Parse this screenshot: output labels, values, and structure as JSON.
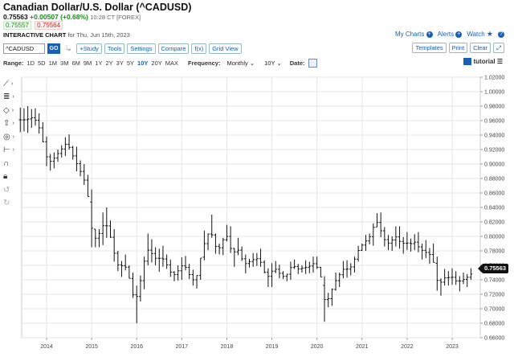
{
  "header": {
    "title": "Canadian Dollar/U.S. Dollar (^CADUSD)",
    "last": "0.75563",
    "change": "+0.00507 (+0.68%)",
    "time": "10:28 CT [FOREX]",
    "bid": "0.75557",
    "ask": "0.75564",
    "chart_label": "INTERACTIVE CHART",
    "chart_date": "for Thu, Jun 15th, 2023"
  },
  "links": {
    "my_charts": "My Charts",
    "alerts": "Alerts",
    "watch": "Watch"
  },
  "toolbar": {
    "symbol_value": "^CADUSD",
    "go": "GO",
    "study": "+Study",
    "tools": "Tools",
    "settings": "Settings",
    "compare": "Compare",
    "fx": "f(x)",
    "grid_view": "Grid View",
    "templates": "Templates",
    "print": "Print",
    "clear": "Clear"
  },
  "rangebar": {
    "range_label": "Range:",
    "ranges": [
      "1D",
      "5D",
      "1M",
      "3M",
      "6M",
      "9M",
      "1Y",
      "2Y",
      "3Y",
      "5Y",
      "10Y",
      "20Y",
      "MAX"
    ],
    "active_range": "10Y",
    "frequency_label": "Frequency:",
    "frequency": "Monthly",
    "period": "10Y",
    "date_label": "Date:",
    "tutorial": "tutorial"
  },
  "side_tools": [
    "line-tool-icon",
    "fibonacci-tool-icon",
    "shape-tool-icon",
    "arrow-tool-icon",
    "annotation-tool-icon",
    "measure-tool-icon",
    "magnet-icon",
    "lock-icon",
    "undo-icon",
    "redo-icon"
  ],
  "chart_data": {
    "type": "ohlc",
    "symbol": "^CADUSD",
    "frequency": "Monthly",
    "ylim": [
      0.66,
      1.02
    ],
    "yticks": [
      "1.02000",
      "1.00000",
      "0.98000",
      "0.96000",
      "0.94000",
      "0.92000",
      "0.90000",
      "0.88000",
      "0.86000",
      "0.84000",
      "0.82000",
      "0.80000",
      "0.78000",
      "0.76000",
      "0.74000",
      "0.72000",
      "0.70000",
      "0.68000",
      "0.66000"
    ],
    "xticks": [
      "2014",
      "2015",
      "2016",
      "2017",
      "2018",
      "2019",
      "2020",
      "2021",
      "2022",
      "2023"
    ],
    "last_price": "0.75563",
    "grid": true,
    "colors": {
      "bars": "#111111",
      "grid": "#e6e6e6",
      "accent": "#1a5fb4"
    },
    "bars": [
      {
        "d": "2013-06",
        "h": 0.978,
        "l": 0.944
      },
      {
        "d": "2013-07",
        "h": 0.977,
        "l": 0.945
      },
      {
        "d": "2013-08",
        "h": 0.98,
        "l": 0.943
      },
      {
        "d": "2013-09",
        "h": 0.976,
        "l": 0.95
      },
      {
        "d": "2013-10",
        "h": 0.977,
        "l": 0.953
      },
      {
        "d": "2013-11",
        "h": 0.97,
        "l": 0.942
      },
      {
        "d": "2013-12",
        "h": 0.958,
        "l": 0.93
      },
      {
        "d": "2014-01",
        "h": 0.938,
        "l": 0.897
      },
      {
        "d": "2014-02",
        "h": 0.914,
        "l": 0.891
      },
      {
        "d": "2014-03",
        "h": 0.916,
        "l": 0.894
      },
      {
        "d": "2014-04",
        "h": 0.92,
        "l": 0.903
      },
      {
        "d": "2014-05",
        "h": 0.926,
        "l": 0.909
      },
      {
        "d": "2014-06",
        "h": 0.937,
        "l": 0.911
      },
      {
        "d": "2014-07",
        "h": 0.941,
        "l": 0.92
      },
      {
        "d": "2014-08",
        "h": 0.925,
        "l": 0.906
      },
      {
        "d": "2014-09",
        "h": 0.924,
        "l": 0.89
      },
      {
        "d": "2014-10",
        "h": 0.905,
        "l": 0.883
      },
      {
        "d": "2014-11",
        "h": 0.9,
        "l": 0.871
      },
      {
        "d": "2014-12",
        "h": 0.885,
        "l": 0.855
      },
      {
        "d": "2015-01",
        "h": 0.865,
        "l": 0.785
      },
      {
        "d": "2015-02",
        "h": 0.81,
        "l": 0.785
      },
      {
        "d": "2015-03",
        "h": 0.81,
        "l": 0.785
      },
      {
        "d": "2015-04",
        "h": 0.833,
        "l": 0.788
      },
      {
        "d": "2015-05",
        "h": 0.84,
        "l": 0.798
      },
      {
        "d": "2015-06",
        "h": 0.822,
        "l": 0.798
      },
      {
        "d": "2015-07",
        "h": 0.81,
        "l": 0.765
      },
      {
        "d": "2015-08",
        "h": 0.78,
        "l": 0.752
      },
      {
        "d": "2015-09",
        "h": 0.766,
        "l": 0.744
      },
      {
        "d": "2015-10",
        "h": 0.775,
        "l": 0.753
      },
      {
        "d": "2015-11",
        "h": 0.76,
        "l": 0.742
      },
      {
        "d": "2015-12",
        "h": 0.75,
        "l": 0.715
      },
      {
        "d": "2016-01",
        "h": 0.732,
        "l": 0.68
      },
      {
        "d": "2016-02",
        "h": 0.746,
        "l": 0.71
      },
      {
        "d": "2016-03",
        "h": 0.772,
        "l": 0.727
      },
      {
        "d": "2016-04",
        "h": 0.804,
        "l": 0.76
      },
      {
        "d": "2016-05",
        "h": 0.796,
        "l": 0.764
      },
      {
        "d": "2016-06",
        "h": 0.785,
        "l": 0.76
      },
      {
        "d": "2016-07",
        "h": 0.783,
        "l": 0.751
      },
      {
        "d": "2016-08",
        "h": 0.787,
        "l": 0.758
      },
      {
        "d": "2016-09",
        "h": 0.775,
        "l": 0.755
      },
      {
        "d": "2016-10",
        "h": 0.768,
        "l": 0.744
      },
      {
        "d": "2016-11",
        "h": 0.752,
        "l": 0.738
      },
      {
        "d": "2016-12",
        "h": 0.76,
        "l": 0.739
      },
      {
        "d": "2017-01",
        "h": 0.771,
        "l": 0.74
      },
      {
        "d": "2017-02",
        "h": 0.773,
        "l": 0.753
      },
      {
        "d": "2017-03",
        "h": 0.762,
        "l": 0.741
      },
      {
        "d": "2017-04",
        "h": 0.754,
        "l": 0.732
      },
      {
        "d": "2017-05",
        "h": 0.746,
        "l": 0.728
      },
      {
        "d": "2017-06",
        "h": 0.77,
        "l": 0.74
      },
      {
        "d": "2017-07",
        "h": 0.808,
        "l": 0.767
      },
      {
        "d": "2017-08",
        "h": 0.804,
        "l": 0.781
      },
      {
        "d": "2017-09",
        "h": 0.83,
        "l": 0.798
      },
      {
        "d": "2017-10",
        "h": 0.804,
        "l": 0.776
      },
      {
        "d": "2017-11",
        "h": 0.79,
        "l": 0.775
      },
      {
        "d": "2017-12",
        "h": 0.798,
        "l": 0.774
      },
      {
        "d": "2018-01",
        "h": 0.816,
        "l": 0.793
      },
      {
        "d": "2018-02",
        "h": 0.814,
        "l": 0.777
      },
      {
        "d": "2018-03",
        "h": 0.784,
        "l": 0.758
      },
      {
        "d": "2018-04",
        "h": 0.798,
        "l": 0.774
      },
      {
        "d": "2018-05",
        "h": 0.786,
        "l": 0.766
      },
      {
        "d": "2018-06",
        "h": 0.775,
        "l": 0.749
      },
      {
        "d": "2018-07",
        "h": 0.769,
        "l": 0.757
      },
      {
        "d": "2018-08",
        "h": 0.777,
        "l": 0.758
      },
      {
        "d": "2018-09",
        "h": 0.777,
        "l": 0.759
      },
      {
        "d": "2018-10",
        "h": 0.783,
        "l": 0.758
      },
      {
        "d": "2018-11",
        "h": 0.767,
        "l": 0.749
      },
      {
        "d": "2018-12",
        "h": 0.756,
        "l": 0.73
      },
      {
        "d": "2019-01",
        "h": 0.763,
        "l": 0.73
      },
      {
        "d": "2019-02",
        "h": 0.766,
        "l": 0.749
      },
      {
        "d": "2019-03",
        "h": 0.761,
        "l": 0.742
      },
      {
        "d": "2019-04",
        "h": 0.752,
        "l": 0.741
      },
      {
        "d": "2019-05",
        "h": 0.748,
        "l": 0.738
      },
      {
        "d": "2019-06",
        "h": 0.765,
        "l": 0.74
      },
      {
        "d": "2019-07",
        "h": 0.768,
        "l": 0.755
      },
      {
        "d": "2019-08",
        "h": 0.762,
        "l": 0.748
      },
      {
        "d": "2019-09",
        "h": 0.76,
        "l": 0.75
      },
      {
        "d": "2019-10",
        "h": 0.767,
        "l": 0.748
      },
      {
        "d": "2019-11",
        "h": 0.765,
        "l": 0.749
      },
      {
        "d": "2019-12",
        "h": 0.772,
        "l": 0.75
      },
      {
        "d": "2020-01",
        "h": 0.772,
        "l": 0.755
      },
      {
        "d": "2020-02",
        "h": 0.758,
        "l": 0.744
      },
      {
        "d": "2020-03",
        "h": 0.745,
        "l": 0.682
      },
      {
        "d": "2020-04",
        "h": 0.722,
        "l": 0.702
      },
      {
        "d": "2020-05",
        "h": 0.728,
        "l": 0.704
      },
      {
        "d": "2020-06",
        "h": 0.75,
        "l": 0.725
      },
      {
        "d": "2020-07",
        "h": 0.75,
        "l": 0.73
      },
      {
        "d": "2020-08",
        "h": 0.766,
        "l": 0.742
      },
      {
        "d": "2020-09",
        "h": 0.767,
        "l": 0.743
      },
      {
        "d": "2020-10",
        "h": 0.763,
        "l": 0.746
      },
      {
        "d": "2020-11",
        "h": 0.772,
        "l": 0.75
      },
      {
        "d": "2020-12",
        "h": 0.787,
        "l": 0.765
      },
      {
        "d": "2021-01",
        "h": 0.79,
        "l": 0.78
      },
      {
        "d": "2021-02",
        "h": 0.802,
        "l": 0.78
      },
      {
        "d": "2021-03",
        "h": 0.804,
        "l": 0.789
      },
      {
        "d": "2021-04",
        "h": 0.818,
        "l": 0.787
      },
      {
        "d": "2021-05",
        "h": 0.832,
        "l": 0.813
      },
      {
        "d": "2021-06",
        "h": 0.833,
        "l": 0.799
      },
      {
        "d": "2021-07",
        "h": 0.813,
        "l": 0.786
      },
      {
        "d": "2021-08",
        "h": 0.802,
        "l": 0.781
      },
      {
        "d": "2021-09",
        "h": 0.8,
        "l": 0.78
      },
      {
        "d": "2021-10",
        "h": 0.814,
        "l": 0.786
      },
      {
        "d": "2021-11",
        "h": 0.814,
        "l": 0.783
      },
      {
        "d": "2021-12",
        "h": 0.799,
        "l": 0.776
      },
      {
        "d": "2022-01",
        "h": 0.806,
        "l": 0.781
      },
      {
        "d": "2022-02",
        "h": 0.797,
        "l": 0.779
      },
      {
        "d": "2022-03",
        "h": 0.803,
        "l": 0.781
      },
      {
        "d": "2022-04",
        "h": 0.806,
        "l": 0.778
      },
      {
        "d": "2022-05",
        "h": 0.79,
        "l": 0.768
      },
      {
        "d": "2022-06",
        "h": 0.795,
        "l": 0.77
      },
      {
        "d": "2022-07",
        "h": 0.784,
        "l": 0.762
      },
      {
        "d": "2022-08",
        "h": 0.79,
        "l": 0.764
      },
      {
        "d": "2022-09",
        "h": 0.772,
        "l": 0.725
      },
      {
        "d": "2022-10",
        "h": 0.742,
        "l": 0.718
      },
      {
        "d": "2022-11",
        "h": 0.755,
        "l": 0.732
      },
      {
        "d": "2022-12",
        "h": 0.752,
        "l": 0.732
      },
      {
        "d": "2023-01",
        "h": 0.756,
        "l": 0.733
      },
      {
        "d": "2023-02",
        "h": 0.752,
        "l": 0.733
      },
      {
        "d": "2023-03",
        "h": 0.745,
        "l": 0.724
      },
      {
        "d": "2023-04",
        "h": 0.75,
        "l": 0.734
      },
      {
        "d": "2023-05",
        "h": 0.748,
        "l": 0.73
      },
      {
        "d": "2023-06",
        "h": 0.756,
        "l": 0.74
      }
    ]
  }
}
